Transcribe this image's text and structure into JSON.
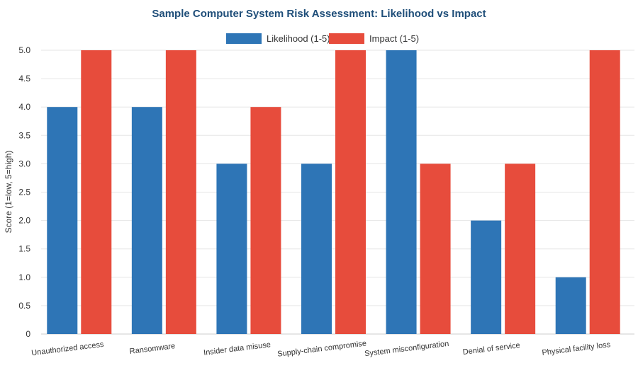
{
  "chart_data": {
    "type": "bar",
    "title": "Sample Computer System Risk Assessment: Likelihood vs Impact",
    "ylabel": "Score (1=low, 5=high)",
    "xlabel": "",
    "ylim": [
      0,
      5
    ],
    "yticks": [
      "0",
      "0.5",
      "1.0",
      "1.5",
      "2.0",
      "2.5",
      "3.0",
      "3.5",
      "4.0",
      "4.5",
      "5.0"
    ],
    "ytick_values": [
      0,
      0.5,
      1,
      1.5,
      2,
      2.5,
      3,
      3.5,
      4,
      4.5,
      5
    ],
    "grid": true,
    "legend_position": "top-center",
    "categories": [
      "Unauthorized access",
      "Ransomware",
      "Insider data misuse",
      "Supply-chain compromise",
      "System misconfiguration",
      "Denial of service",
      "Physical facility loss"
    ],
    "series": [
      {
        "name": "Likelihood (1-5)",
        "color": "#2e75b6",
        "values": [
          4,
          4,
          3,
          3,
          5,
          2,
          1
        ]
      },
      {
        "name": "Impact (1-5)",
        "color": "#e74c3c",
        "values": [
          5,
          5,
          4,
          5,
          3,
          3,
          5
        ]
      }
    ]
  }
}
